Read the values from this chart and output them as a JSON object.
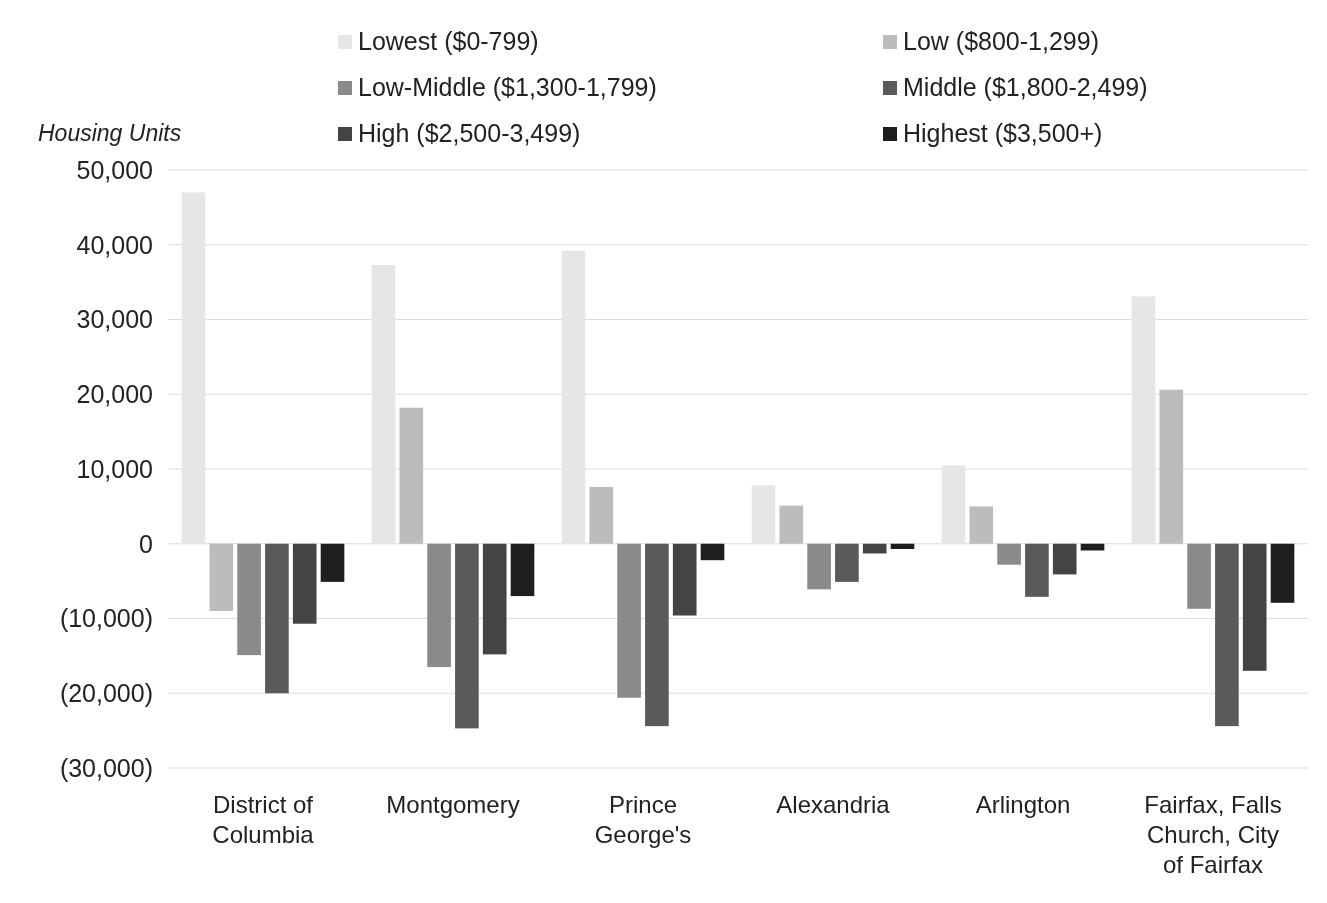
{
  "chart_data": {
    "type": "bar",
    "ylabel": "Housing Units",
    "categories": [
      "District of Columbia",
      "Montgomery",
      "Prince George's",
      "Alexandria",
      "Arlington",
      "Fairfax, Falls Church, City of Fairfax"
    ],
    "series": [
      {
        "name": "Lowest ($0-799)",
        "color": "#e6e6e6",
        "values": [
          47000,
          37300,
          39200,
          7800,
          10500,
          33100
        ]
      },
      {
        "name": "Low ($800-1,299)",
        "color": "#bcbcbc",
        "values": [
          -9000,
          18200,
          7600,
          5100,
          5000,
          20600
        ]
      },
      {
        "name": "Low-Middle ($1,300-1,799)",
        "color": "#8a8a8a",
        "values": [
          -14900,
          -16500,
          -20600,
          -6100,
          -2800,
          -8700
        ]
      },
      {
        "name": "Middle ($1,800-2,499)",
        "color": "#5a5a5a",
        "values": [
          -20000,
          -24700,
          -24400,
          -5100,
          -7100,
          -24400
        ]
      },
      {
        "name": "High ($2,500-3,499)",
        "color": "#444444",
        "values": [
          -10700,
          -14800,
          -9600,
          -1300,
          -4100,
          -17000
        ]
      },
      {
        "name": "Highest ($3,500+)",
        "color": "#1e1e1e",
        "values": [
          -5100,
          -7000,
          -2200,
          -700,
          -900,
          -7900
        ]
      }
    ],
    "ylim": [
      -30000,
      50000
    ],
    "yticks": [
      {
        "value": -30000,
        "label": "(30,000)"
      },
      {
        "value": -20000,
        "label": "(20,000)"
      },
      {
        "value": -10000,
        "label": "(10,000)"
      },
      0,
      {
        "value": 10000,
        "label": "10,000"
      },
      {
        "value": 20000,
        "label": "20,000"
      },
      {
        "value": 30000,
        "label": "30,000"
      },
      {
        "value": 40000,
        "label": "40,000"
      },
      {
        "value": 50000,
        "label": "50,000"
      }
    ],
    "grid": "y",
    "legend": "top"
  }
}
